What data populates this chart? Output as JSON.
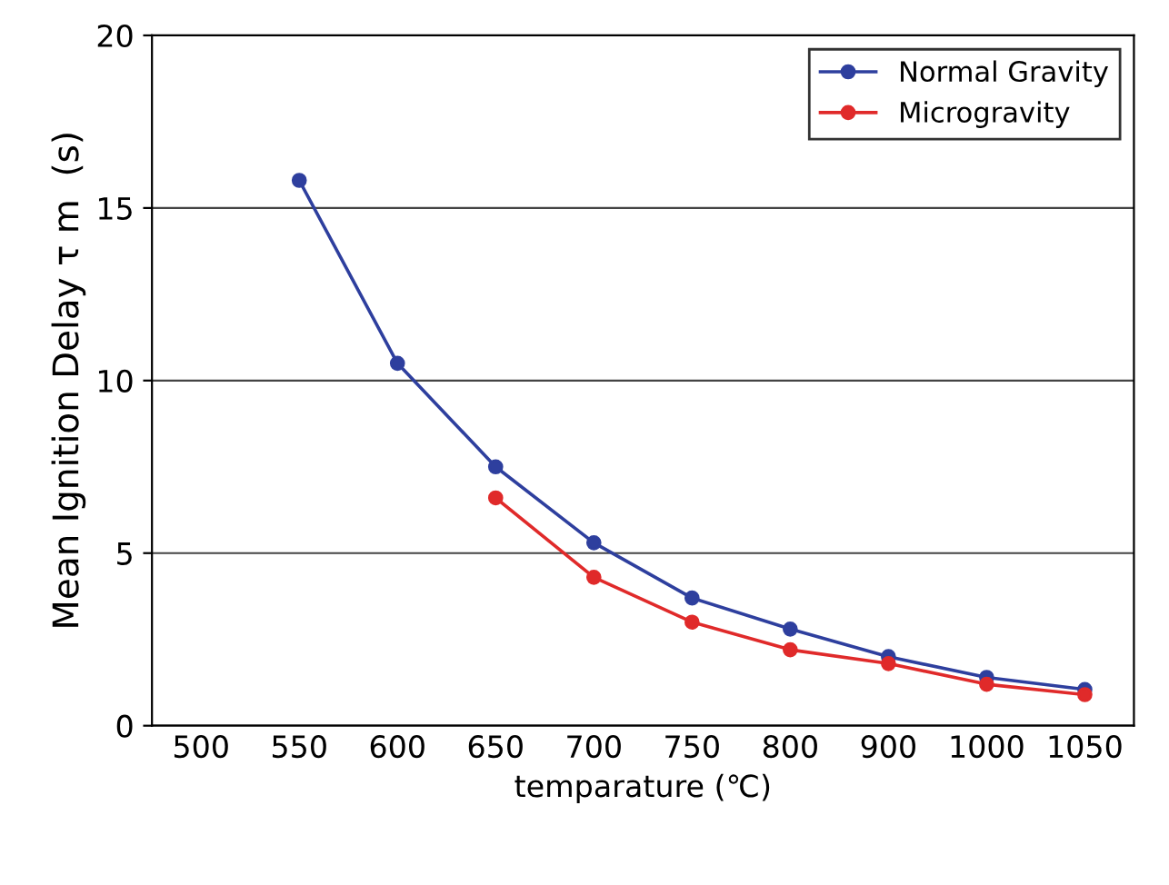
{
  "chart_data": {
    "type": "line",
    "xlabel": "temparature (℃)",
    "ylabel": "Mean Ignition Delay τ m  (s)",
    "categories": [
      "500",
      "550",
      "600",
      "650",
      "700",
      "750",
      "800",
      "900",
      "1000",
      "1050"
    ],
    "series": [
      {
        "name": "Normal Gravity",
        "color": "#2e3f9e",
        "values": [
          null,
          15.8,
          10.5,
          7.5,
          5.3,
          3.7,
          2.8,
          2.0,
          1.4,
          1.05
        ]
      },
      {
        "name": "Microgravity",
        "color": "#e02a2a",
        "values": [
          null,
          null,
          null,
          6.6,
          4.3,
          3.0,
          2.2,
          1.8,
          1.2,
          0.9
        ]
      }
    ],
    "ylim": [
      0,
      20
    ],
    "yticks": [
      0,
      5,
      10,
      15,
      20
    ],
    "grid": "y",
    "legend": "top right",
    "marker": "circle",
    "line_style": "solid"
  }
}
